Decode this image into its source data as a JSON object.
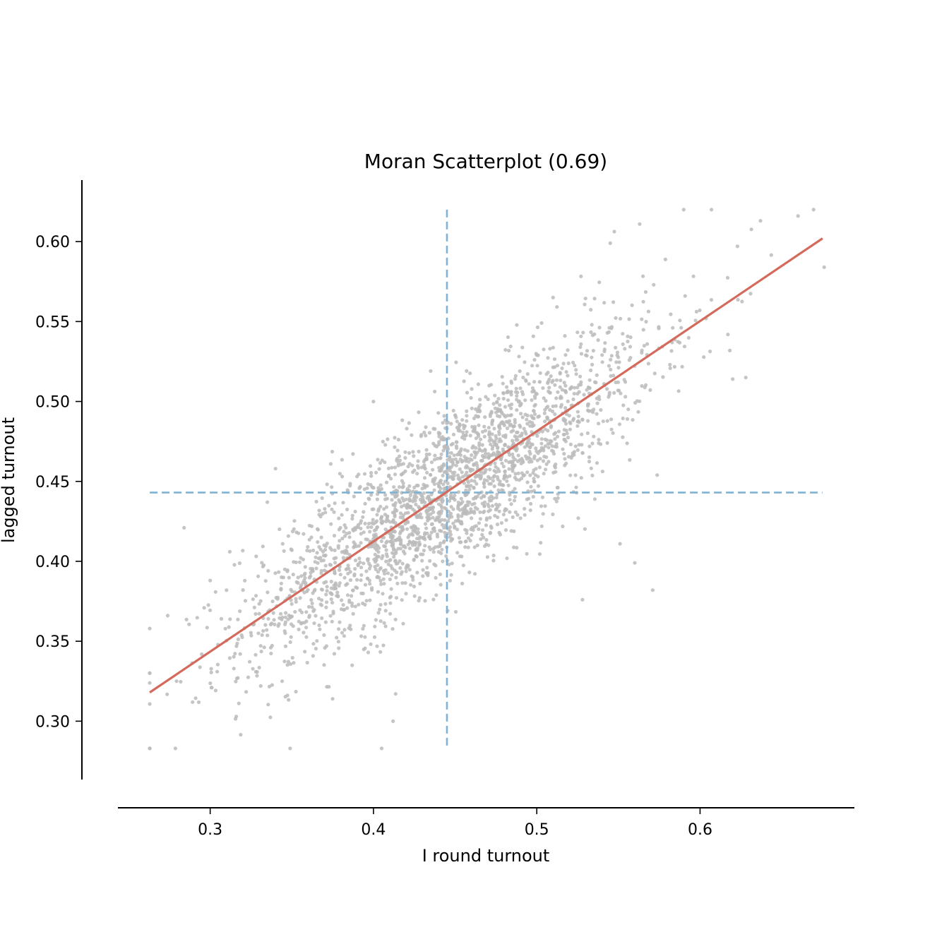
{
  "chart_data": {
    "type": "scatter",
    "title": "Moran Scatterplot (0.69)",
    "xlabel": "I round turnout",
    "ylabel": "lagged turnout",
    "xlim": [
      0.2435,
      0.6945
    ],
    "ylim": [
      0.2635,
      0.6385
    ],
    "x_ticks": [
      0.3,
      0.4,
      0.5,
      0.6
    ],
    "x_tick_labels": [
      "0.3",
      "0.4",
      "0.5",
      "0.6"
    ],
    "y_ticks": [
      0.3,
      0.35,
      0.4,
      0.45,
      0.5,
      0.55,
      0.6
    ],
    "y_tick_labels": [
      "0.30",
      "0.35",
      "0.40",
      "0.45",
      "0.50",
      "0.55",
      "0.60"
    ],
    "grid": false,
    "point_color": "#bbbbbb",
    "fit_line": {
      "color": "#d46a5c",
      "x": [
        0.263,
        0.675
      ],
      "y": [
        0.318,
        0.602
      ]
    },
    "mean_lines": {
      "color": "#7fb2d5",
      "x_mean": 0.445,
      "y_mean": 0.443
    },
    "scatter_generated": {
      "count": 2400,
      "seed": 12345,
      "x_mean": 0.445,
      "x_sd": 0.062,
      "x_min": 0.263,
      "x_max": 0.676,
      "y_intercept": 0.1359,
      "y_slope": 0.69,
      "y_noise_sd": 0.027,
      "y_min": 0.283,
      "y_max": 0.62
    },
    "scatter_points": [
      {
        "x": 0.263,
        "y": 0.358
      },
      {
        "x": 0.274,
        "y": 0.366
      },
      {
        "x": 0.284,
        "y": 0.421
      },
      {
        "x": 0.3,
        "y": 0.388
      },
      {
        "x": 0.301,
        "y": 0.321
      },
      {
        "x": 0.312,
        "y": 0.406
      },
      {
        "x": 0.34,
        "y": 0.458
      },
      {
        "x": 0.35,
        "y": 0.407
      },
      {
        "x": 0.375,
        "y": 0.314
      },
      {
        "x": 0.4,
        "y": 0.5
      },
      {
        "x": 0.405,
        "y": 0.283
      },
      {
        "x": 0.412,
        "y": 0.3
      },
      {
        "x": 0.545,
        "y": 0.599
      },
      {
        "x": 0.51,
        "y": 0.565
      },
      {
        "x": 0.59,
        "y": 0.62
      },
      {
        "x": 0.607,
        "y": 0.62
      },
      {
        "x": 0.637,
        "y": 0.613
      },
      {
        "x": 0.66,
        "y": 0.616
      },
      {
        "x": 0.676,
        "y": 0.584
      },
      {
        "x": 0.563,
        "y": 0.611
      },
      {
        "x": 0.528,
        "y": 0.376
      },
      {
        "x": 0.56,
        "y": 0.399
      },
      {
        "x": 0.571,
        "y": 0.382
      },
      {
        "x": 0.551,
        "y": 0.411
      },
      {
        "x": 0.62,
        "y": 0.514
      },
      {
        "x": 0.628,
        "y": 0.515
      },
      {
        "x": 0.5,
        "y": 0.529
      },
      {
        "x": 0.435,
        "y": 0.519
      },
      {
        "x": 0.335,
        "y": 0.437
      }
    ]
  }
}
